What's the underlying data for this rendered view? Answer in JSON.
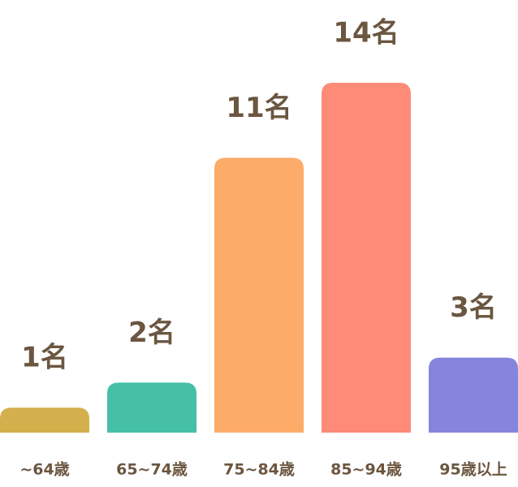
{
  "chart_data": {
    "type": "bar",
    "categories": [
      "~64歳",
      "65~74歳",
      "75~84歳",
      "85~94歳",
      "95歳以上"
    ],
    "values": [
      1,
      2,
      11,
      14,
      3
    ],
    "value_labels": [
      "1名",
      "2名",
      "11名",
      "14名",
      "3名"
    ],
    "colors": [
      "#d4b04c",
      "#45bfa6",
      "#fdab68",
      "#fe8a78",
      "#8685dd"
    ]
  }
}
